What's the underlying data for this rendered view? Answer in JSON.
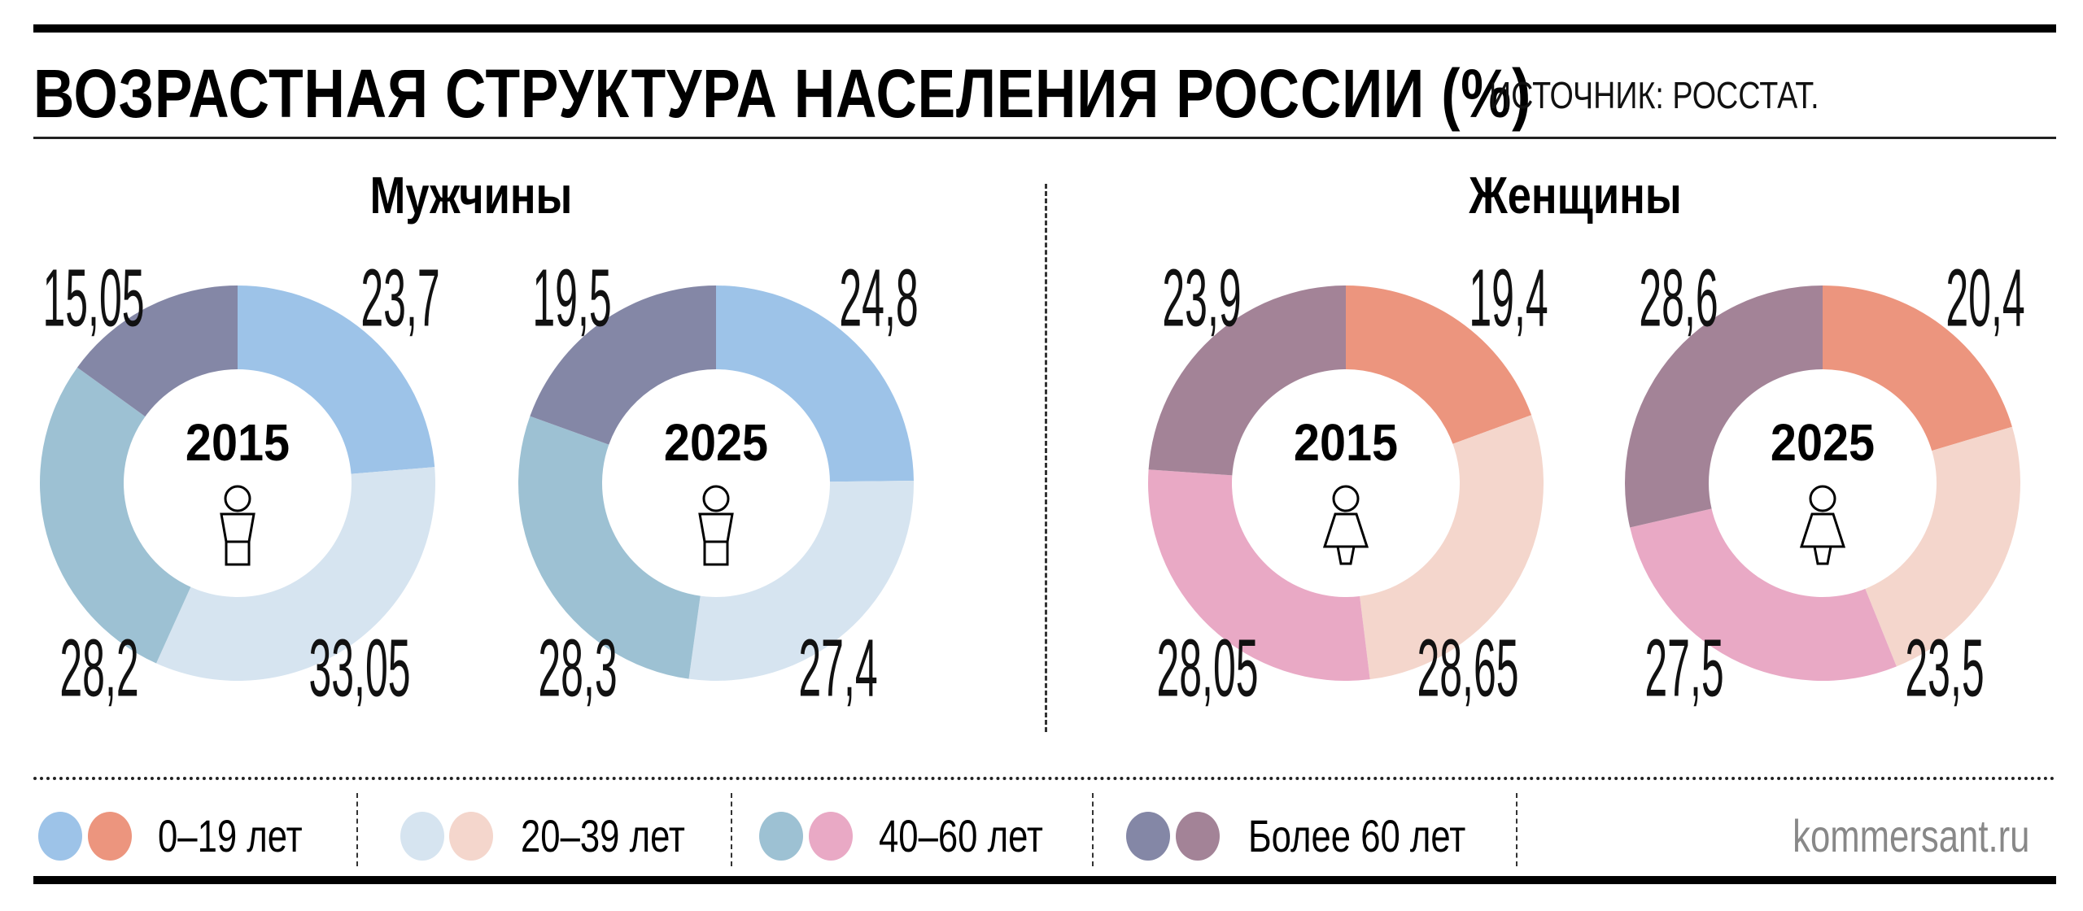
{
  "header": {
    "title": "ВОЗРАСТНАЯ СТРУКТУРА НАСЕЛЕНИЯ РОССИИ (%)",
    "source": "ИСТОЧНИК: РОССТАТ."
  },
  "groups": [
    {
      "title": "Мужчины",
      "icon": "male-figure-icon"
    },
    {
      "title": "Женщины",
      "icon": "female-figure-icon"
    }
  ],
  "legend": {
    "items": [
      {
        "label": "0–19 лет",
        "colors": [
          "#9dc3e8",
          "#ec957e"
        ]
      },
      {
        "label": "20–39 лет",
        "colors": [
          "#d6e4f0",
          "#f4d6cc"
        ]
      },
      {
        "label": "40–60 лет",
        "colors": [
          "#9dc1d3",
          "#e9a9c5"
        ]
      },
      {
        "label": "Более 60 лет",
        "colors": [
          "#8487a6",
          "#a38397"
        ]
      }
    ],
    "brand": "kommersant.ru"
  },
  "chart_data": [
    {
      "type": "pie",
      "variant": "donut",
      "group": "Мужчины",
      "center_label": "2015",
      "categories": [
        "0–19 лет",
        "20–39 лет",
        "40–60 лет",
        "Более 60 лет"
      ],
      "values": [
        23.7,
        33.05,
        28.2,
        15.05
      ],
      "value_labels": [
        "23,7",
        "33,05",
        "28,2",
        "15,05"
      ],
      "colors": [
        "#9dc3e8",
        "#d6e4f0",
        "#9dc1d3",
        "#8487a6"
      ]
    },
    {
      "type": "pie",
      "variant": "donut",
      "group": "Мужчины",
      "center_label": "2025",
      "categories": [
        "0–19 лет",
        "20–39 лет",
        "40–60 лет",
        "Более 60 лет"
      ],
      "values": [
        24.8,
        27.4,
        28.3,
        19.5
      ],
      "value_labels": [
        "24,8",
        "27,4",
        "28,3",
        "19,5"
      ],
      "colors": [
        "#9dc3e8",
        "#d6e4f0",
        "#9dc1d3",
        "#8487a6"
      ]
    },
    {
      "type": "pie",
      "variant": "donut",
      "group": "Женщины",
      "center_label": "2015",
      "categories": [
        "0–19 лет",
        "20–39 лет",
        "40–60 лет",
        "Более 60 лет"
      ],
      "values": [
        19.4,
        28.65,
        28.05,
        23.9
      ],
      "value_labels": [
        "19,4",
        "28,65",
        "28,05",
        "23,9"
      ],
      "colors": [
        "#ec957e",
        "#f4d6cc",
        "#e9a9c5",
        "#a38397"
      ]
    },
    {
      "type": "pie",
      "variant": "donut",
      "group": "Женщины",
      "center_label": "2025",
      "categories": [
        "0–19 лет",
        "20–39 лет",
        "40–60 лет",
        "Более 60 лет"
      ],
      "values": [
        20.4,
        23.5,
        27.5,
        28.6
      ],
      "value_labels": [
        "20,4",
        "23,5",
        "27,5",
        "28,6"
      ],
      "colors": [
        "#ec957e",
        "#f4d6cc",
        "#e9a9c5",
        "#a38397"
      ]
    }
  ]
}
